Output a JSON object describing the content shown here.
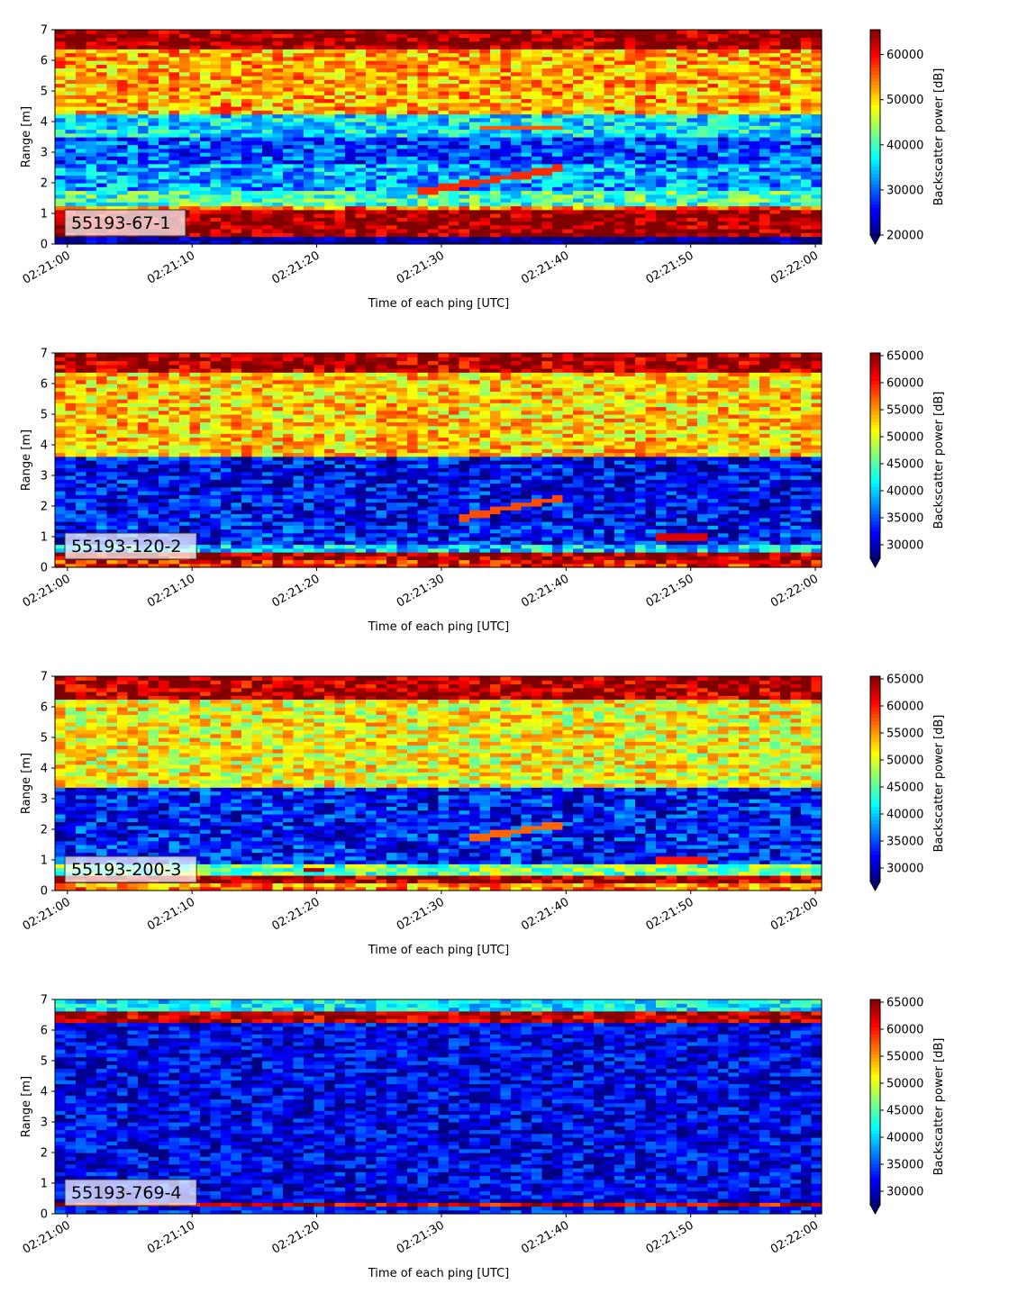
{
  "chart_data": [
    {
      "type": "heatmap",
      "label": "55193-67-1",
      "xlabel": "Time of each ping [UTC]",
      "ylabel": "Range [m]",
      "x_range": [
        "02:21:00",
        "02:22:00"
      ],
      "x_ticks": [
        "02:21:00",
        "02:21:10",
        "02:21:20",
        "02:21:30",
        "02:21:40",
        "02:21:50",
        "02:22:00"
      ],
      "ylim": [
        0,
        7
      ],
      "y_ticks": [
        "0",
        "1",
        "2",
        "3",
        "4",
        "5",
        "6",
        "7"
      ],
      "colorbar": {
        "label": "Backscatter power [dB]",
        "range": [
          20000,
          65500
        ],
        "ticks": [
          "20000",
          "30000",
          "40000",
          "50000",
          "60000"
        ],
        "colormap": "jet",
        "extend": "min"
      },
      "profile": [
        {
          "range": [
            0,
            0.25
          ],
          "value": 20000
        },
        {
          "range": [
            0.25,
            1.15
          ],
          "value": 65000
        },
        {
          "range": [
            1.15,
            1.3
          ],
          "value": 55000
        },
        {
          "range": [
            1.3,
            1.7
          ],
          "value": 40000
        },
        {
          "range": [
            1.7,
            2.6
          ],
          "value": 33000
        },
        {
          "range": [
            2.6,
            3.5
          ],
          "value": 29000
        },
        {
          "range": [
            3.5,
            4.3
          ],
          "value": 36000
        },
        {
          "range": [
            4.3,
            6.4
          ],
          "value": 52000
        },
        {
          "range": [
            6.4,
            7.0
          ],
          "value": 65000
        }
      ],
      "features": [
        {
          "kind": "rising-streak",
          "time_start": "02:21:28",
          "time_end": "02:21:40",
          "range_start": 1.7,
          "range_end": 2.5,
          "value": 58000
        },
        {
          "kind": "streak",
          "time_start": "02:21:33",
          "time_end": "02:21:40",
          "range": 3.8,
          "value": 56000
        }
      ]
    },
    {
      "type": "heatmap",
      "label": "55193-120-2",
      "xlabel": "Time of each ping [UTC]",
      "ylabel": "Range [m]",
      "x_range": [
        "02:21:00",
        "02:22:00"
      ],
      "x_ticks": [
        "02:21:00",
        "02:21:10",
        "02:21:20",
        "02:21:30",
        "02:21:40",
        "02:21:50",
        "02:22:00"
      ],
      "ylim": [
        0,
        7
      ],
      "y_ticks": [
        "0",
        "1",
        "2",
        "3",
        "4",
        "5",
        "6",
        "7"
      ],
      "colorbar": {
        "label": "Backscatter power [dB]",
        "range": [
          27500,
          65500
        ],
        "ticks": [
          "30000",
          "35000",
          "40000",
          "45000",
          "50000",
          "55000",
          "60000",
          "65000"
        ],
        "colormap": "jet",
        "extend": "min"
      },
      "profile": [
        {
          "range": [
            0,
            0.3
          ],
          "value": 60000
        },
        {
          "range": [
            0.3,
            0.55
          ],
          "value": 64000
        },
        {
          "range": [
            0.55,
            0.75
          ],
          "value": 40000
        },
        {
          "range": [
            0.75,
            1.5
          ],
          "value": 33000
        },
        {
          "range": [
            1.5,
            3.6
          ],
          "value": 32000
        },
        {
          "range": [
            3.6,
            6.4
          ],
          "value": 53000
        },
        {
          "range": [
            6.4,
            7.0
          ],
          "value": 64000
        }
      ],
      "features": [
        {
          "kind": "rising-streak",
          "time_start": "02:21:31",
          "time_end": "02:21:40",
          "range_start": 1.6,
          "range_end": 2.3,
          "value": 58000
        },
        {
          "kind": "blob",
          "time_start": "02:21:47",
          "time_end": "02:21:51",
          "range": 1.0,
          "value": 62000
        }
      ]
    },
    {
      "type": "heatmap",
      "label": "55193-200-3",
      "xlabel": "Time of each ping [UTC]",
      "ylabel": "Range [m]",
      "x_range": [
        "02:21:00",
        "02:22:00"
      ],
      "x_ticks": [
        "02:21:00",
        "02:21:10",
        "02:21:20",
        "02:21:30",
        "02:21:40",
        "02:21:50",
        "02:22:00"
      ],
      "ylim": [
        0,
        7
      ],
      "y_ticks": [
        "0",
        "1",
        "2",
        "3",
        "4",
        "5",
        "6",
        "7"
      ],
      "colorbar": {
        "label": "Backscatter power [dB]",
        "range": [
          27500,
          65500
        ],
        "ticks": [
          "30000",
          "35000",
          "40000",
          "45000",
          "50000",
          "55000",
          "60000",
          "65000"
        ],
        "colormap": "jet",
        "extend": "min"
      },
      "profile": [
        {
          "range": [
            0,
            0.3
          ],
          "value": 55000
        },
        {
          "range": [
            0.3,
            0.5
          ],
          "value": 64000
        },
        {
          "range": [
            0.5,
            0.85
          ],
          "value": 46000
        },
        {
          "range": [
            0.85,
            3.4
          ],
          "value": 33000
        },
        {
          "range": [
            3.4,
            6.3
          ],
          "value": 51000
        },
        {
          "range": [
            6.3,
            7.0
          ],
          "value": 64000
        }
      ],
      "features": [
        {
          "kind": "rising-streak",
          "time_start": "02:21:32",
          "time_end": "02:21:40",
          "range_start": 1.7,
          "range_end": 2.2,
          "value": 57000
        },
        {
          "kind": "blob",
          "time_start": "02:21:47",
          "time_end": "02:21:51",
          "range": 1.0,
          "value": 60000
        },
        {
          "kind": "blob",
          "time_start": "02:21:19",
          "time_end": "02:21:21",
          "range": 0.7,
          "value": 64000
        }
      ]
    },
    {
      "type": "heatmap",
      "label": "55193-769-4",
      "xlabel": "Time of each ping [UTC]",
      "ylabel": "Range [m]",
      "x_range": [
        "02:21:00",
        "02:22:00"
      ],
      "x_ticks": [
        "02:21:00",
        "02:21:10",
        "02:21:20",
        "02:21:30",
        "02:21:40",
        "02:21:50",
        "02:22:00"
      ],
      "ylim": [
        0,
        7
      ],
      "y_ticks": [
        "0",
        "1",
        "2",
        "3",
        "4",
        "5",
        "6",
        "7"
      ],
      "colorbar": {
        "label": "Backscatter power [dB]",
        "range": [
          27500,
          65500
        ],
        "ticks": [
          "30000",
          "35000",
          "40000",
          "45000",
          "50000",
          "55000",
          "60000",
          "65000"
        ],
        "colormap": "jet",
        "extend": "min"
      },
      "profile": [
        {
          "range": [
            0,
            0.2
          ],
          "value": 33000
        },
        {
          "range": [
            0.2,
            0.35
          ],
          "value": 62000
        },
        {
          "range": [
            0.35,
            6.3
          ],
          "value": 31500
        },
        {
          "range": [
            6.3,
            6.6
          ],
          "value": 63000
        },
        {
          "range": [
            6.6,
            7.0
          ],
          "value": 41000
        }
      ],
      "features": []
    }
  ]
}
